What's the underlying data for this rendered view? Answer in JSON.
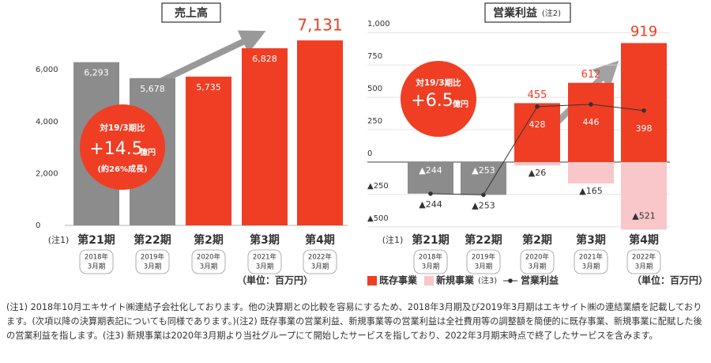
{
  "chart_data": [
    {
      "type": "bar",
      "title": "売上高",
      "note_label": "(注1)",
      "categories": [
        "第21期",
        "第22期",
        "第2期",
        "第3期",
        "第4期"
      ],
      "subcategories": [
        [
          "2018年",
          "3月期"
        ],
        [
          "2019年",
          "3月期"
        ],
        [
          "2020年",
          "3月期"
        ],
        [
          "2021年",
          "3月期"
        ],
        [
          "2022年",
          "3月期"
        ]
      ],
      "values": [
        6293,
        5678,
        5735,
        6828,
        7131
      ],
      "value_labels": [
        "6,293",
        "5,678",
        "5,735",
        "6,828",
        "7,131"
      ],
      "colors": [
        "#8c8c8c",
        "#8c8c8c",
        "#ef3e23",
        "#ef3e23",
        "#ef3e23"
      ],
      "ylim": [
        0,
        7500
      ],
      "yticks": [
        0,
        {
          "value": 2000,
          "label": "2,000"
        },
        {
          "value": 4000,
          "label": "4,000"
        },
        {
          "value": 6000,
          "label": "6,000"
        }
      ],
      "grid": false,
      "unit_label": "（単位：百万円）",
      "annotation": {
        "comparison": "対19/3期比",
        "change": "+14.5",
        "unit": "億円",
        "note": "(約26%成長)"
      }
    },
    {
      "type": "stacked_bar",
      "title": "営業利益",
      "title_note": "(注2)",
      "note_label": "(注1)",
      "categories": [
        "第21期",
        "第22期",
        "第2期",
        "第3期",
        "第4期"
      ],
      "subcategories": [
        [
          "2018年",
          "3月期"
        ],
        [
          "2019年",
          "3月期"
        ],
        [
          "2020年",
          "3月期"
        ],
        [
          "2021年",
          "3月期"
        ],
        [
          "2022年",
          "3月期"
        ]
      ],
      "series": [
        {
          "name": "既存事業",
          "color": "#ef3e23",
          "colors": [
            "#8c8c8c",
            "#8c8c8c",
            "#ef3e23",
            "#ef3e23",
            "#ef3e23"
          ],
          "values": [
            -244,
            -253,
            455,
            612,
            919
          ],
          "value_labels": [
            "▲244",
            "▲253",
            "455",
            "612",
            "919"
          ]
        },
        {
          "name": "新規事業",
          "name_note": "(注3)",
          "color": "#f9c6c9",
          "values": [
            null,
            null,
            -26,
            -165,
            -521
          ],
          "value_labels": [
            null,
            null,
            "▲26",
            "▲165",
            "▲521"
          ]
        },
        {
          "name": "営業利益",
          "type": "line",
          "color": "#333333",
          "values": [
            -244,
            -253,
            428,
            446,
            398
          ],
          "value_labels": [
            "▲244",
            "▲253",
            "428",
            "446",
            "398"
          ]
        }
      ],
      "ylim": [
        -550,
        1050
      ],
      "yticks": [
        {
          "value": 1000,
          "label": "1,000"
        },
        750,
        500,
        250,
        0,
        {
          "value": -250,
          "label": "▲250"
        },
        {
          "value": -500,
          "label": "▲500"
        }
      ],
      "grid": true,
      "unit_label": "（単位：百万円）",
      "annotation": {
        "comparison": "対19/3期比",
        "change": "+6.5",
        "unit": "億円"
      }
    }
  ],
  "footnote": "(注1) 2018年10月エキサイト㈱連結子会社化しております。他の決算期との比較を容易にするため、2018年3月期及び2019年3月期はエキサイト㈱の連結業績を記載しております。(次項以降の決算期表記についても同様であります。)(注2) 既存事業の営業利益、新規事業等の営業利益は全社費用等の調整額を簡便的に既存事業、新規事業に配賦した後の営業利益を指します。(注3) 新規事業は2020年3月期より当社グループにて開始したサービスを指しており、2022年3月期末時点で終了したサービスを含みます。"
}
